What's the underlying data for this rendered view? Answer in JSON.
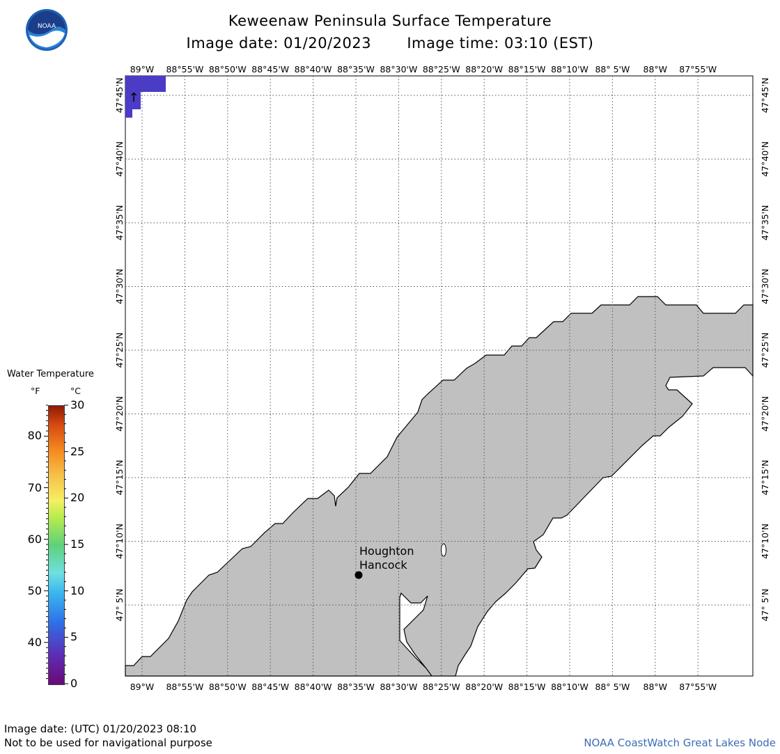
{
  "header": {
    "title": "Keweenaw Peninsula Surface Temperature",
    "image_date_label": "Image date: 01/20/2023",
    "image_time_label": "Image time: 03:10 (EST)"
  },
  "logo": {
    "text": "NOAA",
    "icon": "noaa-logo-icon"
  },
  "map": {
    "lon_labels": [
      "89°W",
      "88°55'W",
      "88°50'W",
      "88°45'W",
      "88°40'W",
      "88°35'W",
      "88°30'W",
      "88°25'W",
      "88°20'W",
      "88°15'W",
      "88°10'W",
      "88° 5'W",
      "88°W",
      "87°55'W"
    ],
    "lat_labels": [
      "47°45'N",
      "47°40'N",
      "47°35'N",
      "47°30'N",
      "47°25'N",
      "47°20'N",
      "47°15'N",
      "47°10'N",
      "47° 5'N"
    ],
    "land_color": "#c0c0c0",
    "water_cold_color": "#4b3cc8",
    "city_label_1": "Houghton",
    "city_label_2": "Hancock",
    "north_arrow": "↑"
  },
  "legend": {
    "title": "Water Temperature",
    "unit_f": "°F",
    "unit_c": "°C",
    "f_labels": [
      "80",
      "70",
      "60",
      "50",
      "40"
    ],
    "c_labels": [
      "30",
      "25",
      "20",
      "15",
      "10",
      "5",
      "0"
    ]
  },
  "footer": {
    "utc_date": "Image date: (UTC) 01/20/2023  08:10",
    "disclaimer": "Not to be used for navigational purpose",
    "credit": "NOAA CoastWatch Great Lakes Node"
  }
}
